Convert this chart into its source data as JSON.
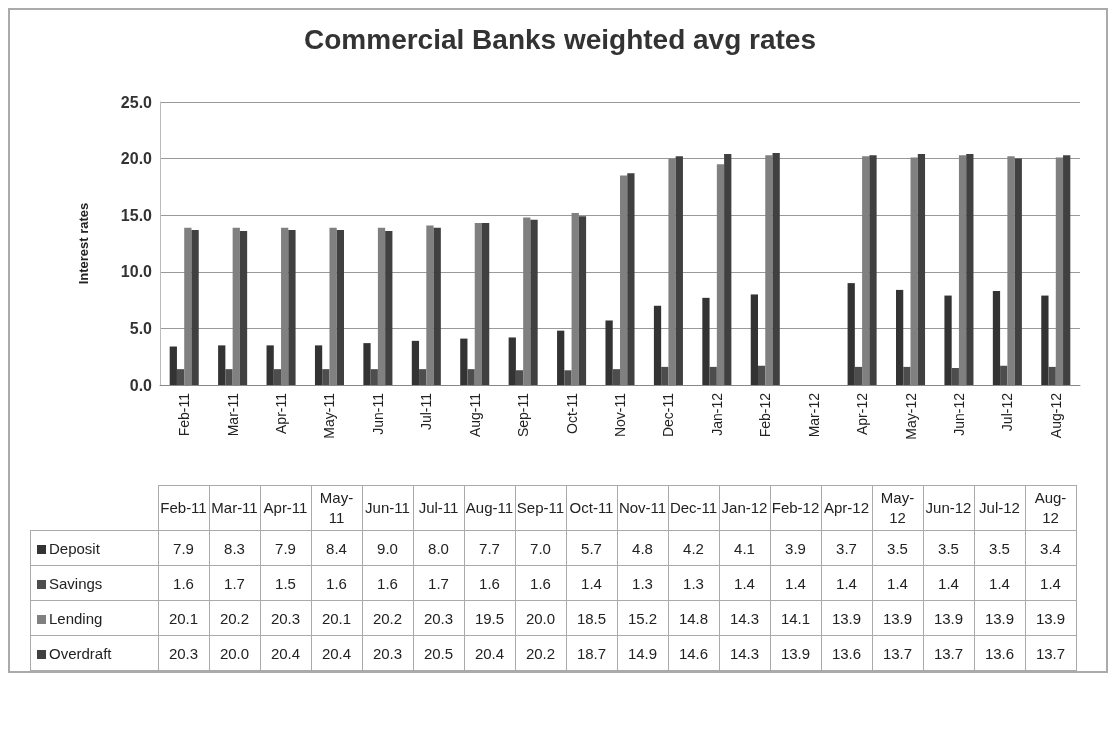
{
  "chart_data": [
    {
      "type": "bar",
      "title": "Commercial Banks weighted avg rates",
      "ylabel": "Interest rates",
      "categories": [
        "Feb-11",
        "Mar-11",
        "Apr-11",
        "May-11",
        "Jun-11",
        "Jul-11",
        "Aug-11",
        "Sep-11",
        "Oct-11",
        "Nov-11",
        "Dec-11",
        "Jan-12",
        "Feb-12",
        "Mar-12",
        "Apr-12",
        "May-12",
        "Jun-12",
        "Jul-12",
        "Aug-12"
      ],
      "series": [
        {
          "color": "#333333",
          "values": [
            3.4,
            3.5,
            3.5,
            3.5,
            3.7,
            3.9,
            4.1,
            4.2,
            4.8,
            5.7,
            7.0,
            7.7,
            8.0,
            null,
            9.0,
            8.4,
            7.9,
            8.3,
            7.9
          ]
        },
        {
          "color": "#4d4d4d",
          "values": [
            1.4,
            1.4,
            1.4,
            1.4,
            1.4,
            1.4,
            1.4,
            1.3,
            1.3,
            1.4,
            1.6,
            1.6,
            1.7,
            null,
            1.6,
            1.6,
            1.5,
            1.7,
            1.6
          ]
        },
        {
          "color": "#808080",
          "values": [
            13.9,
            13.9,
            13.9,
            13.9,
            13.9,
            14.1,
            14.3,
            14.8,
            15.2,
            18.5,
            20.0,
            19.5,
            20.3,
            null,
            20.2,
            20.1,
            20.3,
            20.2,
            20.1
          ]
        },
        {
          "color": "#404040",
          "values": [
            13.7,
            13.6,
            13.7,
            13.7,
            13.6,
            13.9,
            14.3,
            14.6,
            14.9,
            18.7,
            20.2,
            20.4,
            20.5,
            null,
            20.3,
            20.4,
            20.4,
            20.0,
            20.3
          ]
        }
      ],
      "ylim": [
        0,
        25
      ],
      "yticks": [
        {
          "value": 0,
          "label": "0.0"
        },
        {
          "value": 5,
          "label": "5.0"
        },
        {
          "value": 10,
          "label": "10.0"
        },
        {
          "value": 15,
          "label": "15.0"
        },
        {
          "value": 20,
          "label": "20.0"
        },
        {
          "value": 25,
          "label": "25.0"
        }
      ],
      "grid": "y"
    },
    {
      "type": "heatmap",
      "categories": [
        "Feb-11",
        "Mar-11",
        "Apr-11",
        "May-11",
        "Jun-11",
        "Jul-11",
        "Aug-11",
        "Sep-11",
        "Oct-11",
        "Nov-11",
        "Dec-11",
        "Jan-12",
        "Feb-12",
        "Apr-12",
        "May-12",
        "Jun-12",
        "Jul-12",
        "Aug-12"
      ],
      "y_categories": [
        "Deposit",
        "Savings",
        "Lending",
        "Overdraft"
      ],
      "data_labels": true,
      "cell_labels": [
        [
          "7.9",
          "8.3",
          "7.9",
          "8.4",
          "9.0",
          "8.0",
          "7.7",
          "7.0",
          "5.7",
          "4.8",
          "4.2",
          "4.1",
          "3.9",
          "3.7",
          "3.5",
          "3.5",
          "3.5",
          "3.4"
        ],
        [
          "1.6",
          "1.7",
          "1.5",
          "1.6",
          "1.6",
          "1.7",
          "1.6",
          "1.6",
          "1.4",
          "1.3",
          "1.3",
          "1.4",
          "1.4",
          "1.4",
          "1.4",
          "1.4",
          "1.4",
          "1.4"
        ],
        [
          "20.1",
          "20.2",
          "20.3",
          "20.1",
          "20.2",
          "20.3",
          "19.5",
          "20.0",
          "18.5",
          "15.2",
          "14.8",
          "14.3",
          "14.1",
          "13.9",
          "13.9",
          "13.9",
          "13.9",
          "13.9"
        ],
        [
          "20.3",
          "20.0",
          "20.4",
          "20.4",
          "20.3",
          "20.5",
          "20.4",
          "20.2",
          "18.7",
          "14.9",
          "14.6",
          "14.3",
          "13.9",
          "13.6",
          "13.7",
          "13.7",
          "13.6",
          "13.7"
        ]
      ],
      "colors": [
        "#333333",
        "#4d4d4d",
        "#808080",
        "#404040"
      ],
      "cells": [
        [
          7.9,
          8.3,
          7.9,
          8.4,
          9.0,
          8.0,
          7.7,
          7.0,
          5.7,
          4.8,
          4.2,
          4.1,
          3.9,
          3.7,
          3.5,
          3.5,
          3.5,
          3.4
        ],
        [
          1.6,
          1.7,
          1.5,
          1.6,
          1.6,
          1.7,
          1.6,
          1.6,
          1.4,
          1.3,
          1.3,
          1.4,
          1.4,
          1.4,
          1.4,
          1.4,
          1.4,
          1.4
        ],
        [
          20.1,
          20.2,
          20.3,
          20.1,
          20.2,
          20.3,
          19.5,
          20.0,
          18.5,
          15.2,
          14.8,
          14.3,
          14.1,
          13.9,
          13.9,
          13.9,
          13.9,
          13.9
        ],
        [
          20.3,
          20.0,
          20.4,
          20.4,
          20.3,
          20.5,
          20.4,
          20.2,
          18.7,
          14.9,
          14.6,
          14.3,
          13.9,
          13.6,
          13.7,
          13.7,
          13.6,
          13.7
        ]
      ]
    }
  ]
}
